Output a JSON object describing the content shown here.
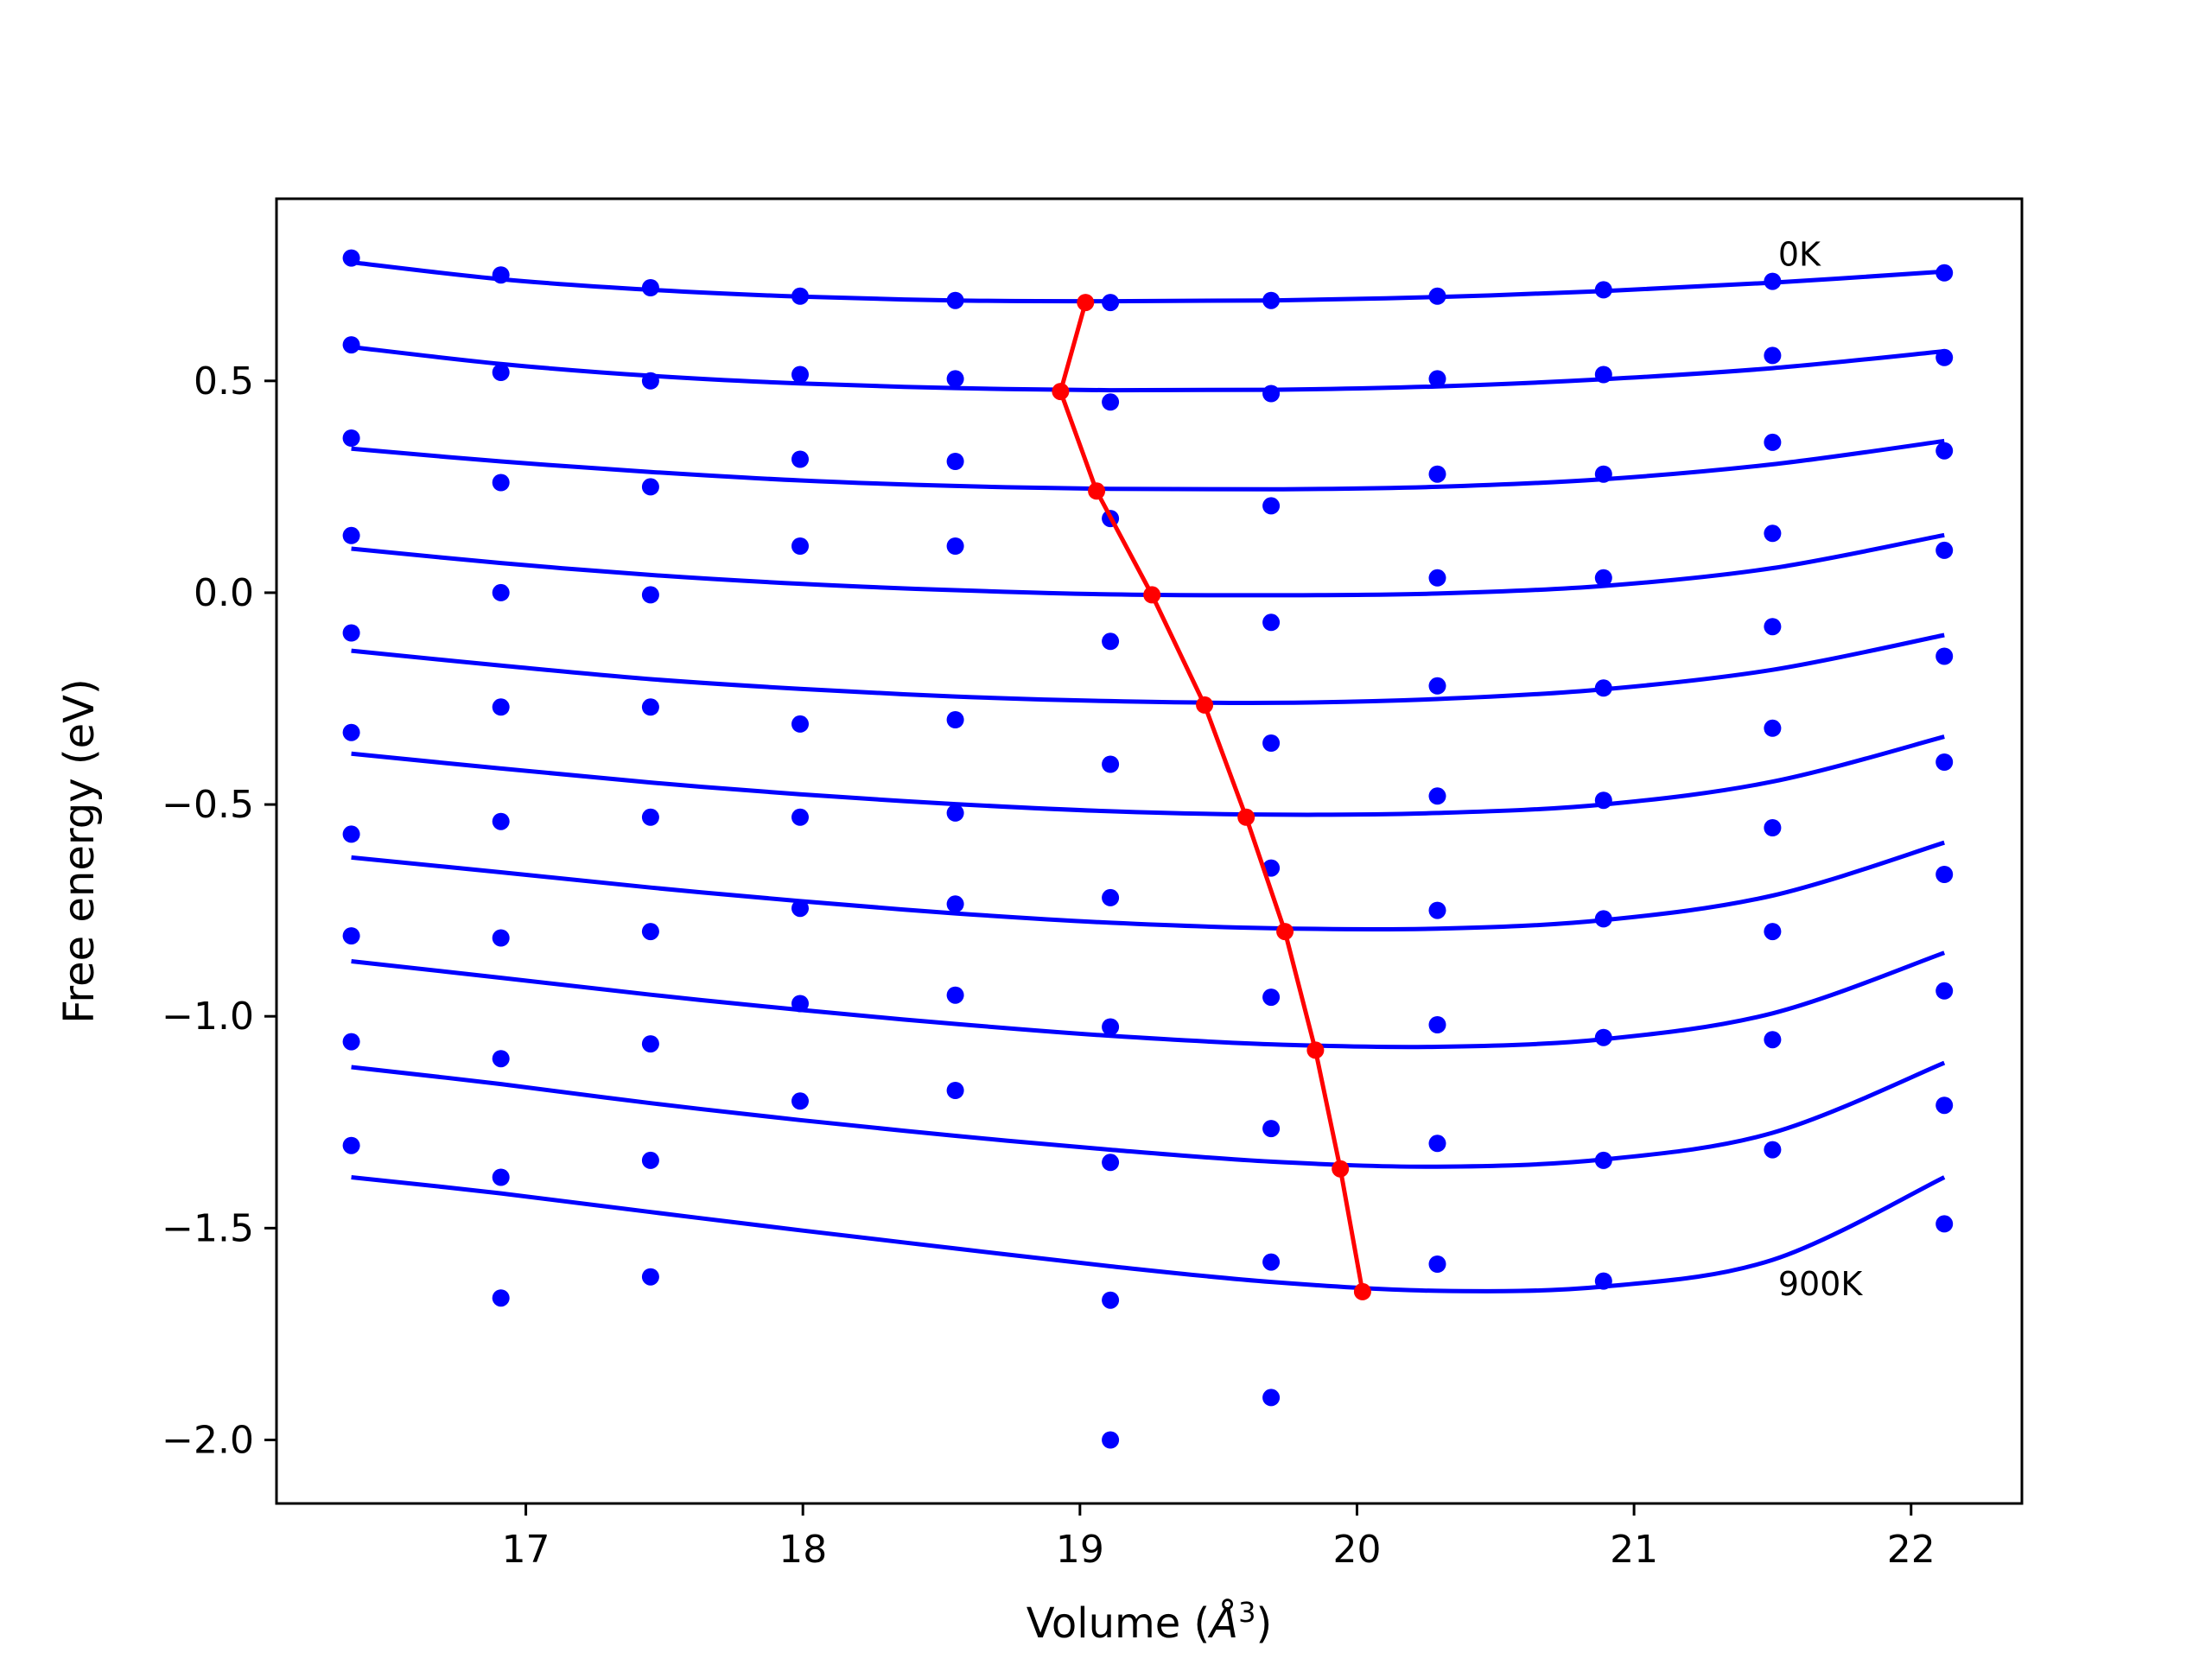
{
  "chart_data": {
    "type": "line",
    "title": "",
    "xlabel_main": "Volume (",
    "xlabel_unit": "Å",
    "xlabel_sup": "3",
    "xlabel_close": ")",
    "ylabel": "Free energy (eV)",
    "xlim": [
      16.1,
      22.4
    ],
    "ylim": [
      -2.15,
      0.93
    ],
    "xticks": [
      17,
      18,
      19,
      20,
      21,
      22
    ],
    "xtick_labels": [
      "17",
      "18",
      "19",
      "20",
      "21",
      "22"
    ],
    "yticks": [
      -2.0,
      -1.5,
      -1.0,
      -0.5,
      0.0,
      0.5
    ],
    "ytick_labels": [
      "−2.0",
      "−1.5",
      "−1.0",
      "−0.5",
      "0.0",
      "0.5"
    ],
    "grid": false,
    "annotations": [
      {
        "text": "0K",
        "x": 21.52,
        "y": 0.8
      },
      {
        "text": "900K",
        "x": 21.52,
        "y": -1.63
      }
    ],
    "colors": {
      "data": "#0000ff",
      "fit": "#0000ff",
      "minimum": "#ff0000",
      "frame": "#000000"
    },
    "volumes": [
      16.37,
      16.91,
      17.45,
      17.99,
      18.55,
      19.11,
      19.69,
      20.29,
      20.89,
      21.5,
      22.12
    ],
    "series": [
      {
        "points": [
          0.79,
          0.75,
          0.72,
          0.7,
          0.69,
          0.685,
          0.69,
          0.7,
          0.715,
          0.735,
          0.755
        ],
        "fit": [
          0.78,
          0.74,
          0.715,
          0.699,
          0.69,
          0.688,
          0.69,
          0.698,
          0.712,
          0.732,
          0.758
        ]
      },
      {
        "points": [
          0.585,
          0.52,
          0.5,
          0.515,
          0.505,
          0.45,
          0.47,
          0.505,
          0.515,
          0.56,
          0.555
        ],
        "fit": [
          0.58,
          0.54,
          0.512,
          0.494,
          0.483,
          0.478,
          0.479,
          0.487,
          0.504,
          0.53,
          0.57
        ]
      },
      {
        "points": [
          0.365,
          0.26,
          0.25,
          0.315,
          0.31,
          0.175,
          0.205,
          0.28,
          0.28,
          0.355,
          0.335
        ],
        "fit": [
          0.34,
          0.31,
          0.285,
          0.265,
          0.252,
          0.245,
          0.244,
          0.25,
          0.268,
          0.303,
          0.358
        ]
      },
      {
        "points": [
          0.135,
          0.0,
          -0.005,
          0.11,
          0.11,
          -0.115,
          -0.07,
          0.035,
          0.035,
          0.14,
          0.1
        ],
        "fit": [
          0.104,
          0.07,
          0.042,
          0.021,
          0.006,
          -0.004,
          -0.006,
          -0.002,
          0.016,
          0.058,
          0.136
        ]
      },
      {
        "points": [
          -0.095,
          -0.27,
          -0.27,
          -0.31,
          -0.3,
          -0.405,
          -0.355,
          -0.22,
          -0.225,
          -0.08,
          -0.15
        ],
        "fit": [
          -0.137,
          -0.172,
          -0.204,
          -0.227,
          -0.245,
          -0.256,
          -0.26,
          -0.251,
          -0.228,
          -0.182,
          -0.1
        ]
      },
      {
        "points": [
          -0.33,
          -0.54,
          -0.53,
          -0.53,
          -0.52,
          -0.72,
          -0.65,
          -0.48,
          -0.49,
          -0.32,
          -0.4
        ],
        "fit": [
          -0.38,
          -0.415,
          -0.448,
          -0.476,
          -0.499,
          -0.516,
          -0.524,
          -0.52,
          -0.5,
          -0.446,
          -0.34
        ]
      },
      {
        "points": [
          -0.57,
          -0.815,
          -0.8,
          -0.745,
          -0.735,
          -1.025,
          -0.955,
          -0.75,
          -0.77,
          -0.555,
          -0.665
        ],
        "fit": [
          -0.625,
          -0.66,
          -0.696,
          -0.728,
          -0.757,
          -0.779,
          -0.792,
          -0.793,
          -0.773,
          -0.715,
          -0.59
        ]
      },
      {
        "points": [
          -0.81,
          -1.1,
          -1.065,
          -0.97,
          -0.95,
          -1.345,
          -1.265,
          -1.02,
          -1.05,
          -0.8,
          -0.94
        ],
        "fit": [
          -0.87,
          -0.909,
          -0.949,
          -0.985,
          -1.018,
          -1.046,
          -1.066,
          -1.072,
          -1.054,
          -0.993,
          -0.85
        ]
      },
      {
        "points": [
          -1.06,
          -1.38,
          -1.34,
          -1.2,
          -1.175,
          -1.67,
          -1.58,
          -1.3,
          -1.34,
          -1.055,
          -1.21
        ],
        "fit": [
          -1.12,
          -1.16,
          -1.205,
          -1.245,
          -1.282,
          -1.315,
          -1.343,
          -1.355,
          -1.338,
          -1.275,
          -1.11
        ]
      },
      {
        "points": [
          -1.305,
          -1.665,
          -1.615,
          null,
          null,
          -2.0,
          -1.9,
          -1.585,
          -1.625,
          -1.315,
          -1.49
        ],
        "fit": [
          -1.38,
          -1.418,
          -1.462,
          -1.505,
          -1.548,
          -1.59,
          -1.627,
          -1.648,
          -1.638,
          -1.575,
          -1.38
        ]
      }
    ],
    "minimum_path": {
      "x": [
        19.02,
        18.93,
        19.06,
        19.26,
        19.45,
        19.6,
        19.74,
        19.85,
        19.94,
        20.02
      ],
      "y": [
        0.685,
        0.475,
        0.24,
        -0.005,
        -0.265,
        -0.53,
        -0.8,
        -1.08,
        -1.36,
        -1.65
      ]
    }
  }
}
